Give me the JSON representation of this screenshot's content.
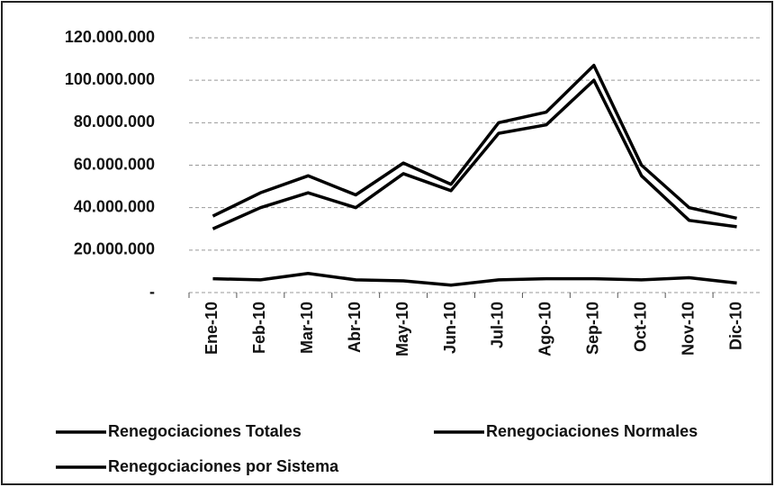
{
  "chart_data": {
    "type": "line",
    "categories": [
      "Ene-10",
      "Feb-10",
      "Mar-10",
      "Abr-10",
      "May-10",
      "Jun-10",
      "Jul-10",
      "Ago-10",
      "Sep-10",
      "Oct-10",
      "Nov-10",
      "Dic-10"
    ],
    "series": [
      {
        "name": "Renegociaciones Totales",
        "color": "#000000",
        "values": [
          36000000,
          47000000,
          55000000,
          46000000,
          61000000,
          51000000,
          80000000,
          85000000,
          107000000,
          60000000,
          40000000,
          35000000
        ]
      },
      {
        "name": "Renegociaciones Normales",
        "color": "#000000",
        "values": [
          30000000,
          40000000,
          47000000,
          40000000,
          56000000,
          48000000,
          75000000,
          79000000,
          100000000,
          55000000,
          34000000,
          31000000
        ]
      },
      {
        "name": "Renegociaciones por Sistema",
        "color": "#000000",
        "values": [
          6500000,
          6000000,
          9000000,
          6000000,
          5500000,
          3500000,
          6000000,
          6500000,
          6500000,
          6000000,
          7000000,
          4500000
        ]
      }
    ],
    "ylim": [
      0,
      120000000
    ],
    "yticks": [
      {
        "value": 0,
        "label": "-"
      },
      {
        "value": 20000000,
        "label": "20.000.000"
      },
      {
        "value": 40000000,
        "label": "40.000.000"
      },
      {
        "value": 60000000,
        "label": "60.000.000"
      },
      {
        "value": 80000000,
        "label": "80.000.000"
      },
      {
        "value": 100000000,
        "label": "100.000.000"
      },
      {
        "value": 120000000,
        "label": "120.000.000"
      }
    ],
    "grid": true
  }
}
